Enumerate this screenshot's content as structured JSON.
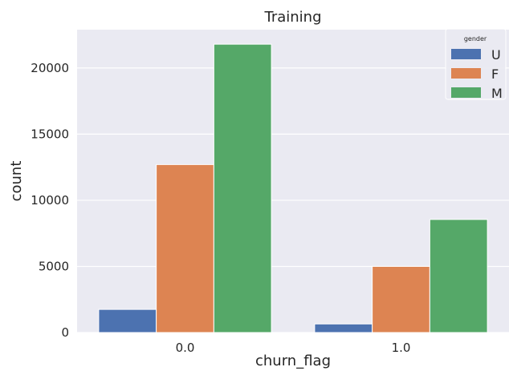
{
  "chart_data": {
    "type": "bar",
    "title": "Training",
    "xlabel": "churn_flag",
    "ylabel": "count",
    "categories": [
      "0.0",
      "1.0"
    ],
    "series": [
      {
        "name": "U",
        "color": "#4c72b0",
        "values": [
          1750,
          650
        ]
      },
      {
        "name": "F",
        "color": "#dd8452",
        "values": [
          12700,
          5000
        ]
      },
      {
        "name": "M",
        "color": "#55a868",
        "values": [
          21800,
          8550
        ]
      }
    ],
    "ylim": [
      0,
      22900
    ],
    "yticks": [
      0,
      5000,
      10000,
      15000,
      20000
    ],
    "ytick_labels": [
      "0",
      "5000",
      "10000",
      "15000",
      "20000"
    ],
    "grid": true,
    "legend": {
      "title": "gender",
      "placement": "top-right"
    },
    "style": {
      "background": "#eaeaf2",
      "grid_color": "#ffffff"
    }
  }
}
